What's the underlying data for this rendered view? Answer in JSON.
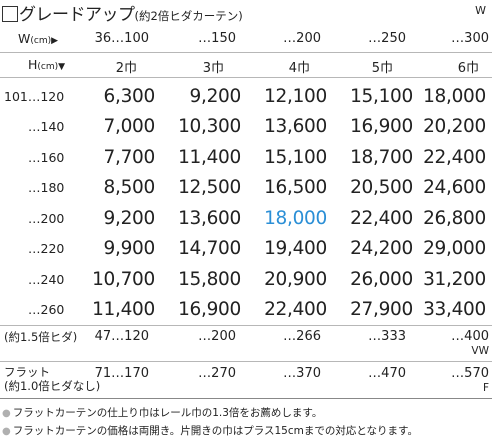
{
  "title": "グレードアップ",
  "subtitle": "(約2倍ヒダカーテン)",
  "corner_label": "W",
  "width_axis": {
    "label": "W",
    "unit": "(cm)",
    "arrow": "▶"
  },
  "height_axis": {
    "label": "H",
    "unit": "(cm)",
    "arrow": "▼"
  },
  "width_ranges": [
    "36…100",
    "…150",
    "…200",
    "…250",
    "…300"
  ],
  "panel_widths": [
    "2巾",
    "3巾",
    "4巾",
    "5巾",
    "6巾"
  ],
  "rows": [
    {
      "h": "101…120",
      "prices": [
        "6,300",
        "9,200",
        "12,100",
        "15,100",
        "18,000"
      ]
    },
    {
      "h": "…140",
      "prices": [
        "7,000",
        "10,300",
        "13,600",
        "16,900",
        "20,200"
      ]
    },
    {
      "h": "…160",
      "prices": [
        "7,700",
        "11,400",
        "15,100",
        "18,700",
        "22,400"
      ]
    },
    {
      "h": "…180",
      "prices": [
        "8,500",
        "12,500",
        "16,500",
        "20,500",
        "24,600"
      ]
    },
    {
      "h": "…200",
      "prices": [
        "9,200",
        "13,600",
        "18,000",
        "22,400",
        "26,800"
      ]
    },
    {
      "h": "…220",
      "prices": [
        "9,900",
        "14,700",
        "19,400",
        "24,200",
        "29,000"
      ]
    },
    {
      "h": "…240",
      "prices": [
        "10,700",
        "15,800",
        "20,900",
        "26,000",
        "31,200"
      ]
    },
    {
      "h": "…260",
      "prices": [
        "11,400",
        "16,900",
        "22,400",
        "27,900",
        "33,400"
      ]
    }
  ],
  "highlight": {
    "row": 4,
    "col": 2,
    "color": "#2b8fd6"
  },
  "pleat15": {
    "label": "(約1.5倍ヒダ)",
    "widths": [
      "47…120",
      "…200",
      "…266",
      "…333",
      "…400"
    ],
    "unit": "VW"
  },
  "flat": {
    "label_line1": "フラット",
    "label_line2": "(約1.0倍ヒダなし)",
    "widths": [
      "71…170",
      "…270",
      "…370",
      "…470",
      "…570"
    ],
    "unit": "F"
  },
  "notes": [
    "フラットカーテンの仕上り巾はレール巾の1.3倍をお薦めします。",
    "フラットカーテンの価格は両開き。片開きの巾はプラス15cmまでの対応となります。"
  ]
}
